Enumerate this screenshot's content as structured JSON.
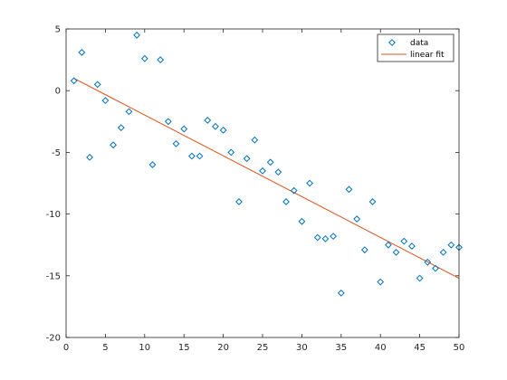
{
  "chart_data": {
    "type": "scatter",
    "title": "",
    "xlabel": "",
    "ylabel": "",
    "xlim": [
      0,
      50
    ],
    "ylim": [
      -20,
      5
    ],
    "x_ticks": [
      0,
      5,
      10,
      15,
      20,
      25,
      30,
      35,
      40,
      45,
      50
    ],
    "y_ticks": [
      5,
      0,
      -5,
      -10,
      -15,
      -20
    ],
    "grid": false,
    "legend_position": "top-right",
    "series": [
      {
        "name": "data",
        "kind": "scatter",
        "marker": "diamond",
        "color": "#0072BD",
        "x": [
          1,
          2,
          3,
          4,
          5,
          6,
          7,
          8,
          9,
          10,
          11,
          12,
          13,
          14,
          15,
          16,
          17,
          18,
          19,
          20,
          21,
          22,
          23,
          24,
          25,
          26,
          27,
          28,
          29,
          30,
          31,
          32,
          33,
          34,
          35,
          36,
          37,
          38,
          39,
          40,
          41,
          42,
          43,
          44,
          45,
          46,
          47,
          48,
          49,
          50
        ],
        "y": [
          0.8,
          3.1,
          -5.4,
          0.5,
          -0.8,
          -4.4,
          -3.0,
          -1.7,
          4.5,
          2.6,
          -6.0,
          2.5,
          -2.5,
          -4.3,
          -3.1,
          -5.3,
          -5.3,
          -2.4,
          -2.9,
          -3.2,
          -5.0,
          -9.0,
          -5.5,
          -4.0,
          -6.5,
          -5.8,
          -6.6,
          -9.0,
          -8.1,
          -10.6,
          -7.5,
          -11.9,
          -12.0,
          -11.8,
          -16.4,
          -8.0,
          -10.4,
          -12.9,
          -9.0,
          -15.5,
          -12.5,
          -13.1,
          -12.2,
          -12.6,
          -15.2,
          -13.9,
          -14.4,
          -13.1,
          -12.5,
          -12.7
        ]
      },
      {
        "name": "linear fit",
        "kind": "line",
        "color": "#D95319",
        "x": [
          1,
          50
        ],
        "y": [
          1.0,
          -15.2
        ]
      }
    ]
  }
}
